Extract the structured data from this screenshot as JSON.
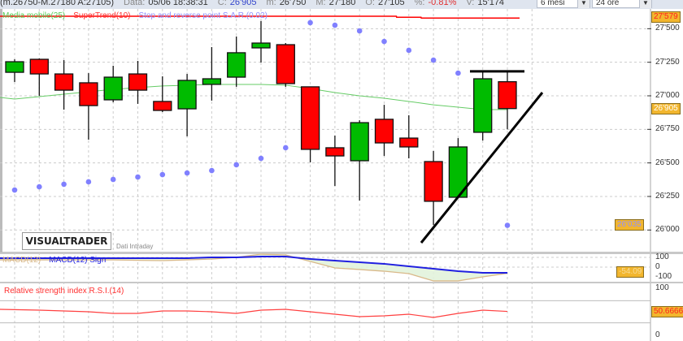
{
  "header": {
    "range": "(m.26750-M.27180 A:27105)",
    "date_label": "Data:",
    "date": "05/06 18:38:31",
    "close_label": "C:",
    "close": "26'905",
    "min_label": "m:",
    "min": "26'750",
    "max_label": "M:",
    "max": "27'180",
    "open_label": "O:",
    "open": "27'105",
    "pct_label": "%:",
    "pct": "-0.81%",
    "vol_label": "V:",
    "vol": "15'174",
    "period": "6 mesi",
    "interval": "24 ore"
  },
  "legend": {
    "ma": "Media mobile(25)",
    "supertrend": "SuperTrend(10)",
    "sar": "Stop and reverse point S.A.R.(0.02)",
    "macd": "MACD(12)",
    "macd_signal": "MACD(12) Sign",
    "rsi": "Relative strength index R.S.I.(14)"
  },
  "branding": {
    "logo": "VISUALTRADER",
    "note": "Dati Intraday"
  },
  "colors": {
    "up": "#00bb00",
    "down": "#ff0000",
    "ma": "#66cc66",
    "supertrend": "#ff0000",
    "sar": "#8080ff",
    "macd": "#d9b98a",
    "signal": "#2020e0",
    "rsi": "#ff4040",
    "badge": "#f2b62e"
  },
  "price_axis": {
    "ticks": [
      "27'500",
      "27'250",
      "27'000",
      "26'750",
      "26'500",
      "26'250",
      "26'000"
    ],
    "tick_values": [
      27500,
      27250,
      27000,
      26750,
      26500,
      26250,
      26000
    ],
    "supertrend_badge": "27'579",
    "last_badge": "26'905",
    "sar_badge": "26'035"
  },
  "macd_axis": {
    "ticks": [
      "100",
      "0",
      "-100"
    ],
    "badge": "-54.09"
  },
  "rsi_axis": {
    "ticks": [
      "100",
      "0"
    ],
    "badge": "50.6666"
  },
  "chart_data": {
    "type": "candlestick",
    "ohlc": [
      [
        27175,
        27272,
        27103,
        27254
      ],
      [
        27272,
        27278,
        27000,
        27163
      ],
      [
        27163,
        27266,
        26897,
        27042
      ],
      [
        27097,
        27169,
        26673,
        26927
      ],
      [
        26970,
        27224,
        26952,
        27139
      ],
      [
        27163,
        27260,
        26940,
        27042
      ],
      [
        26958,
        27145,
        26879,
        26891
      ],
      [
        26903,
        27163,
        26698,
        27115
      ],
      [
        27085,
        27363,
        26964,
        27127
      ],
      [
        27139,
        27442,
        27067,
        27321
      ],
      [
        27357,
        27557,
        27248,
        27393
      ],
      [
        27381,
        27393,
        27067,
        27091
      ],
      [
        27067,
        27067,
        26504,
        26601
      ],
      [
        26613,
        26704,
        26328,
        26552
      ],
      [
        26516,
        26818,
        26220,
        26800
      ],
      [
        26825,
        26933,
        26552,
        26649
      ],
      [
        26685,
        26855,
        26534,
        26619
      ],
      [
        26510,
        26589,
        26038,
        26214
      ],
      [
        26244,
        26685,
        26244,
        26619
      ],
      [
        26728,
        27182,
        26667,
        27127
      ],
      [
        27105,
        27180,
        26750,
        26905
      ]
    ],
    "ma25": [
      26976,
      26994,
      27012,
      27030,
      27048,
      27061,
      27073,
      27079,
      27085,
      27085,
      27085,
      27079,
      27054,
      27024,
      27000,
      26982,
      26958,
      26933,
      26915,
      26897,
      26897
    ],
    "sar": [
      26298,
      26322,
      26341,
      26359,
      26377,
      26395,
      26413,
      26425,
      26443,
      26486,
      26534,
      26613,
      27545,
      27526,
      27484,
      27405,
      27339,
      27266,
      27169,
      null,
      26035
    ],
    "supertrend": [
      27593,
      27593,
      27593,
      27593,
      27593,
      27593,
      27593,
      27593,
      27593,
      27593,
      27593,
      27593,
      27593,
      27593,
      27593,
      27593,
      27585,
      27579,
      27579,
      27579,
      27579
    ],
    "macd": [
      64,
      64,
      64,
      64,
      64,
      60,
      57,
      64,
      71,
      86,
      114,
      107,
      50,
      -7,
      -21,
      -36,
      -57,
      -121,
      -121,
      -86,
      -54.09
    ],
    "macd_signal": [
      79,
      79,
      79,
      79,
      79,
      79,
      79,
      79,
      86,
      86,
      93,
      93,
      71,
      57,
      43,
      29,
      7,
      -14,
      -36,
      -50,
      -50
    ],
    "rsi": [
      54.4,
      52.9,
      51.5,
      50,
      47.1,
      47.1,
      51.5,
      51.5,
      50,
      47.1,
      52.9,
      54.4,
      50,
      45.6,
      41.2,
      42.6,
      45.6,
      39.7,
      47.1,
      52.9,
      50.67
    ],
    "yrange": [
      25950,
      27620
    ],
    "drawings": {
      "resistance": [
        27182,
        27182
      ],
      "trendline": [
        [
          26000,
          25930
        ],
        [
          27000,
          27070
        ]
      ]
    }
  }
}
